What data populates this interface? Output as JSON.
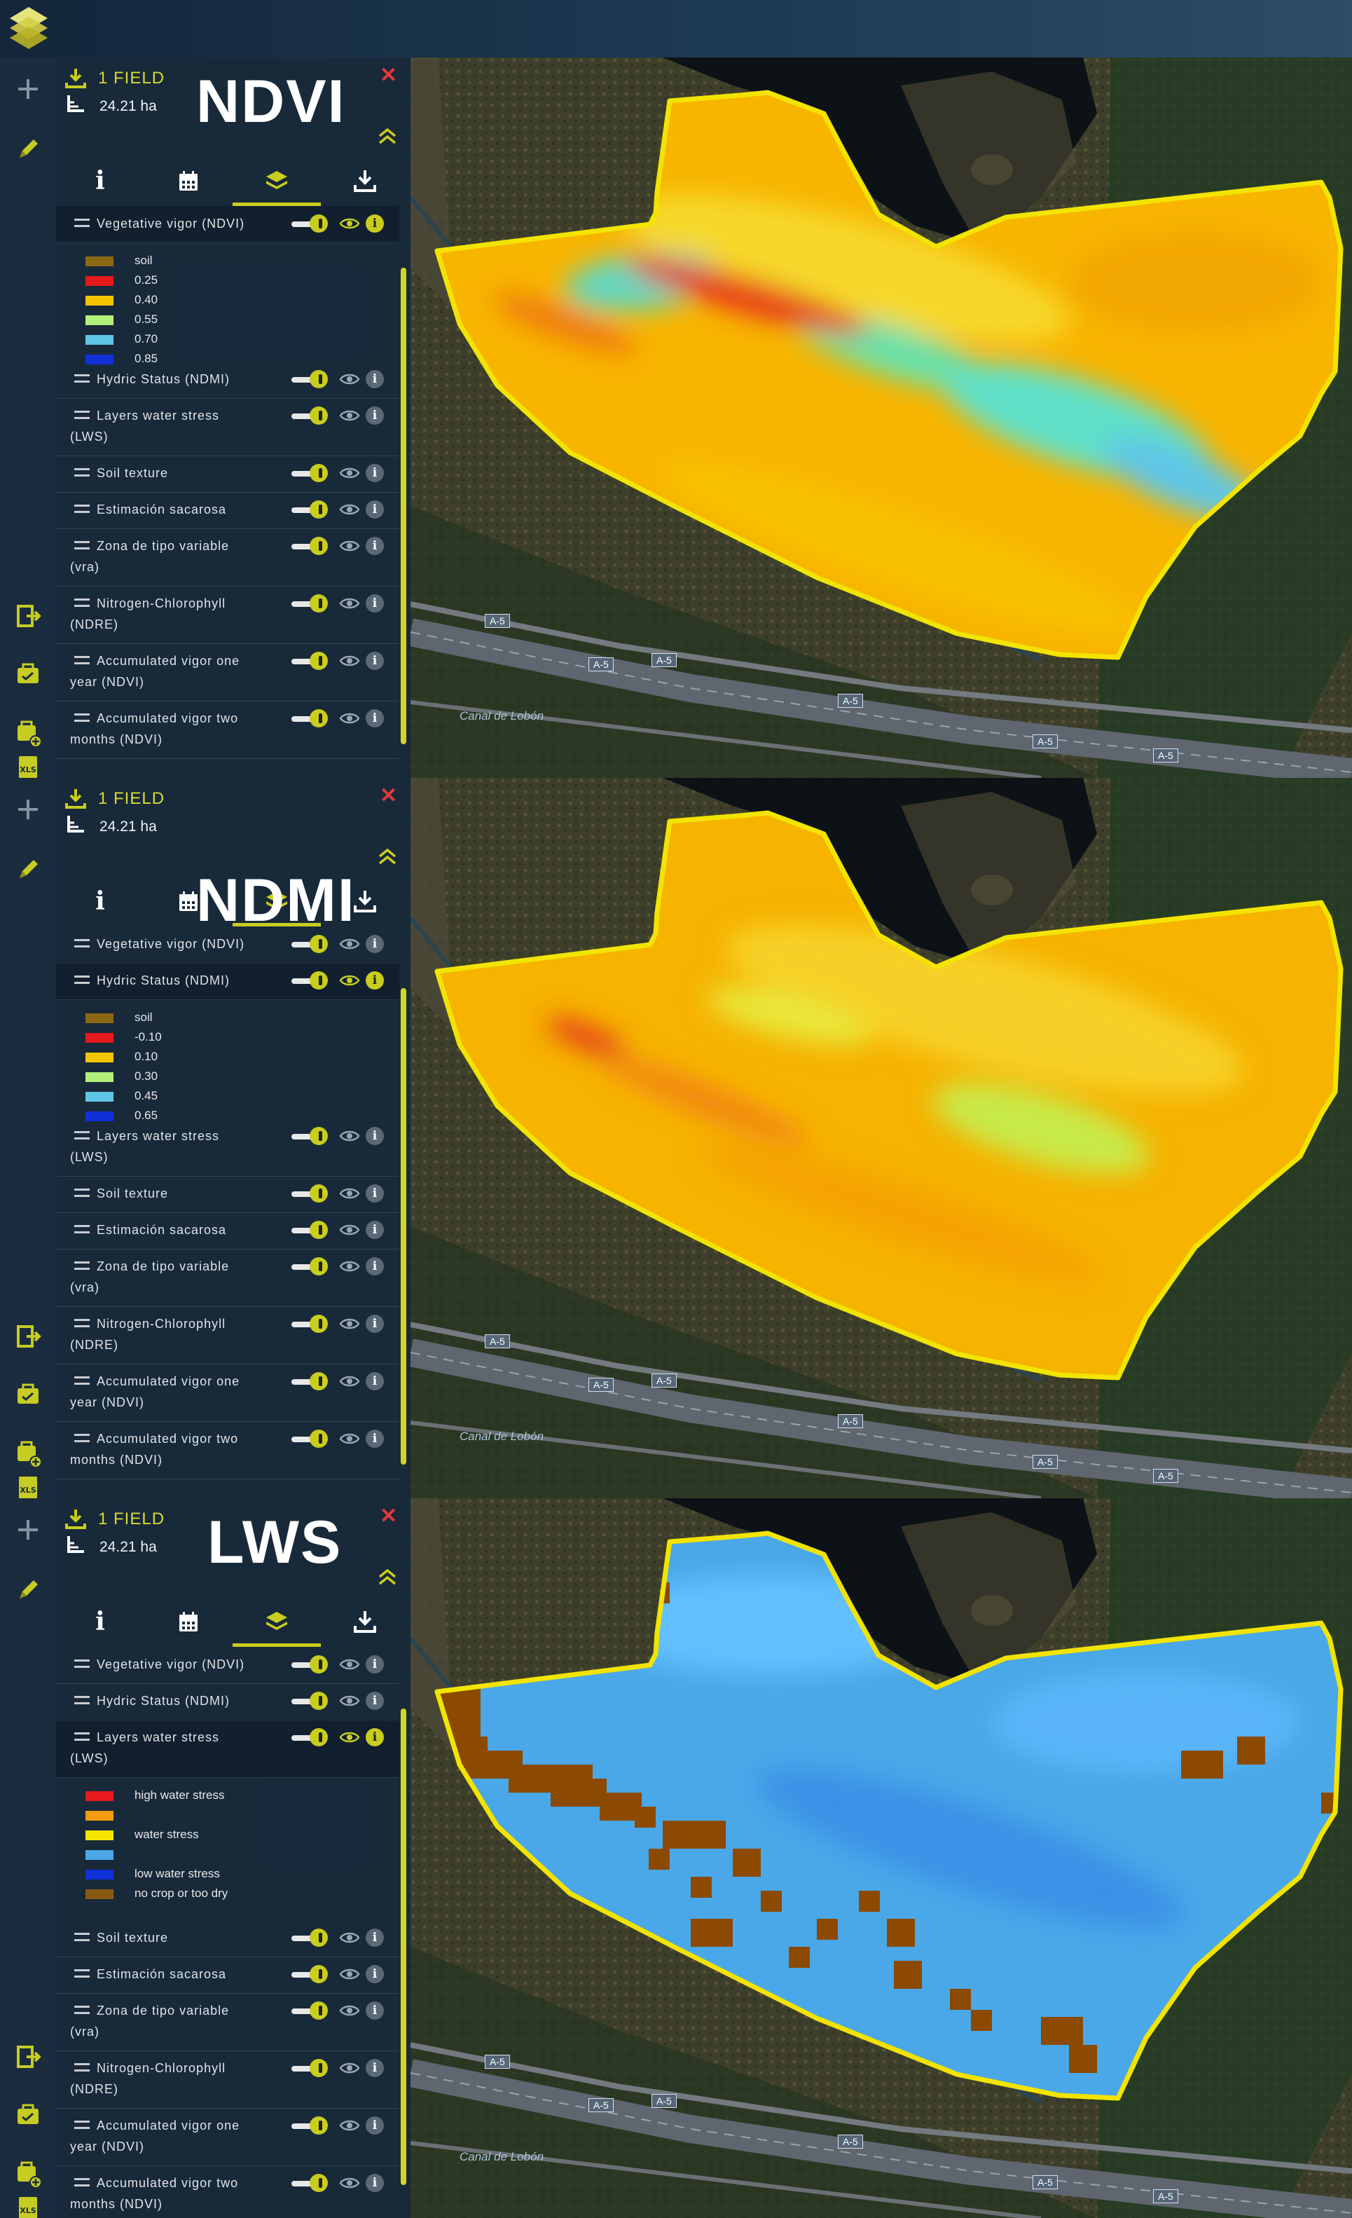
{
  "app": {
    "accent": "#c8cd1f",
    "close_color": "#e0393a"
  },
  "panels": [
    {
      "overlay_label": "NDVI",
      "field_count": "1 FIELD",
      "area": "24.21 ha",
      "layers": [
        {
          "line1": "Vegetative vigor (NDVI)",
          "line2": ""
        },
        {
          "line1": "Hydric Status (NDMI)",
          "line2": ""
        },
        {
          "line1": "Layers water stress",
          "line2": "(LWS)"
        },
        {
          "line1": "Soil texture",
          "line2": ""
        },
        {
          "line1": "Estimación sacarosa",
          "line2": ""
        },
        {
          "line1": "Zona de tipo variable",
          "line2": "(vra)"
        },
        {
          "line1": "Nitrogen-Chlorophyll",
          "line2": "(NDRE)"
        },
        {
          "line1": "Accumulated vigor one",
          "line2": "year (NDVI)"
        },
        {
          "line1": "Accumulated vigor two",
          "line2": "months (NDVI)"
        }
      ],
      "active_layer": 0,
      "legend": [
        {
          "color": "#8b6914",
          "label": "soil"
        },
        {
          "color": "#e41a1c",
          "label": "0.25"
        },
        {
          "color": "#f5c400",
          "label": "0.40"
        },
        {
          "color": "#b3f07a",
          "label": "0.55"
        },
        {
          "color": "#5fc6e6",
          "label": "0.70"
        },
        {
          "color": "#1030d8",
          "label": "0.85"
        }
      ]
    },
    {
      "overlay_label": "NDMI",
      "field_count": "1 FIELD",
      "area": "24.21 ha",
      "layers": [
        {
          "line1": "Vegetative vigor (NDVI)",
          "line2": ""
        },
        {
          "line1": "Hydric Status (NDMI)",
          "line2": ""
        },
        {
          "line1": "Layers water stress",
          "line2": "(LWS)"
        },
        {
          "line1": "Soil texture",
          "line2": ""
        },
        {
          "line1": "Estimación sacarosa",
          "line2": ""
        },
        {
          "line1": "Zona de tipo variable",
          "line2": "(vra)"
        },
        {
          "line1": "Nitrogen-Chlorophyll",
          "line2": "(NDRE)"
        },
        {
          "line1": "Accumulated vigor one",
          "line2": "year (NDVI)"
        },
        {
          "line1": "Accumulated vigor two",
          "line2": "months (NDVI)"
        }
      ],
      "active_layer": 1,
      "legend": [
        {
          "color": "#8b6914",
          "label": "soil"
        },
        {
          "color": "#e41a1c",
          "label": "-0.10"
        },
        {
          "color": "#f5c400",
          "label": "0.10"
        },
        {
          "color": "#b3f07a",
          "label": "0.30"
        },
        {
          "color": "#5fc6e6",
          "label": "0.45"
        },
        {
          "color": "#1030d8",
          "label": "0.65"
        }
      ]
    },
    {
      "overlay_label": "LWS",
      "field_count": "1 FIELD",
      "area": "24.21 ha",
      "layers": [
        {
          "line1": "Vegetative vigor (NDVI)",
          "line2": ""
        },
        {
          "line1": "Hydric Status (NDMI)",
          "line2": ""
        },
        {
          "line1": "Layers water stress",
          "line2": "(LWS)"
        },
        {
          "line1": "Soil texture",
          "line2": ""
        },
        {
          "line1": "Estimación sacarosa",
          "line2": ""
        },
        {
          "line1": "Zona de tipo variable",
          "line2": "(vra)"
        },
        {
          "line1": "Nitrogen-Chlorophyll",
          "line2": "(NDRE)"
        },
        {
          "line1": "Accumulated vigor one",
          "line2": "year (NDVI)"
        },
        {
          "line1": "Accumulated vigor two",
          "line2": "months (NDVI)"
        }
      ],
      "active_layer": 2,
      "legend": [
        {
          "color": "#e41a1c",
          "label": "high water stress"
        },
        {
          "color": "#f39c12",
          "label": ""
        },
        {
          "color": "#f5e400",
          "label": "water stress"
        },
        {
          "color": "#4aa8e8",
          "label": ""
        },
        {
          "color": "#1030d8",
          "label": "low water stress"
        },
        {
          "color": "#8b5a12",
          "label": "no crop or too dry"
        }
      ]
    }
  ],
  "map": {
    "road_label": "A-5",
    "canal_label": "Canal de Lobón"
  }
}
